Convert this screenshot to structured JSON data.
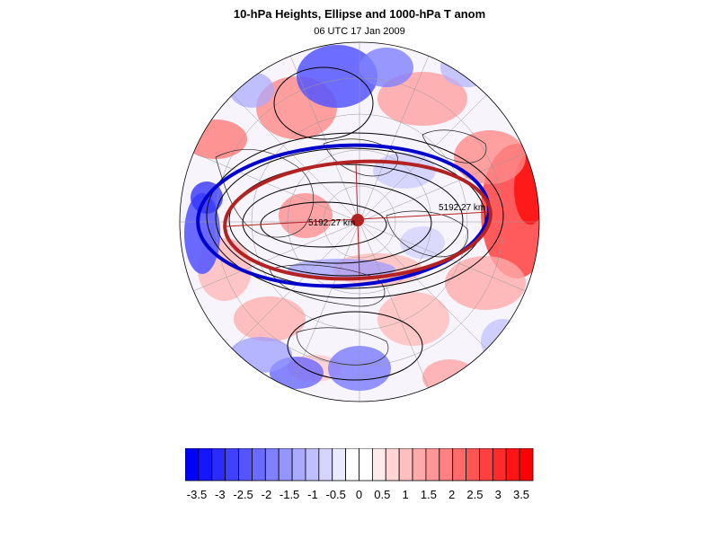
{
  "title": "10-hPa Heights, Ellipse and 1000-hPa T anom",
  "subtitle": "06 UTC 17 Jan 2009",
  "map": {
    "projection": "polar-stereographic (north pole)",
    "ellipse_labels": [
      "5192.27 km",
      "5192.27 km"
    ],
    "colors": {
      "ellipse": "#b22222",
      "vortex_edge": "#0000cd",
      "height_contours": "#000000"
    }
  },
  "colorbar": {
    "tick_labels": [
      "-3.5",
      "-3",
      "-2.5",
      "-2",
      "-1.5",
      "-1",
      "-0.5",
      "0",
      "0.5",
      "1",
      "1.5",
      "2",
      "2.5",
      "3",
      "3.5"
    ],
    "colors": [
      "#0000ff",
      "#1515ff",
      "#2b2bff",
      "#4040ff",
      "#5555ff",
      "#6b6bff",
      "#8080ff",
      "#9595ff",
      "#aaaaff",
      "#bfbfff",
      "#d5d5ff",
      "#eaeaff",
      "#ffffff",
      "#ffffff",
      "#ffeaea",
      "#ffd5d5",
      "#ffbfbf",
      "#ffaaaa",
      "#ff9595",
      "#ff8080",
      "#ff6b6b",
      "#ff5555",
      "#ff4040",
      "#ff2b2b",
      "#ff1515",
      "#ff0000"
    ]
  }
}
